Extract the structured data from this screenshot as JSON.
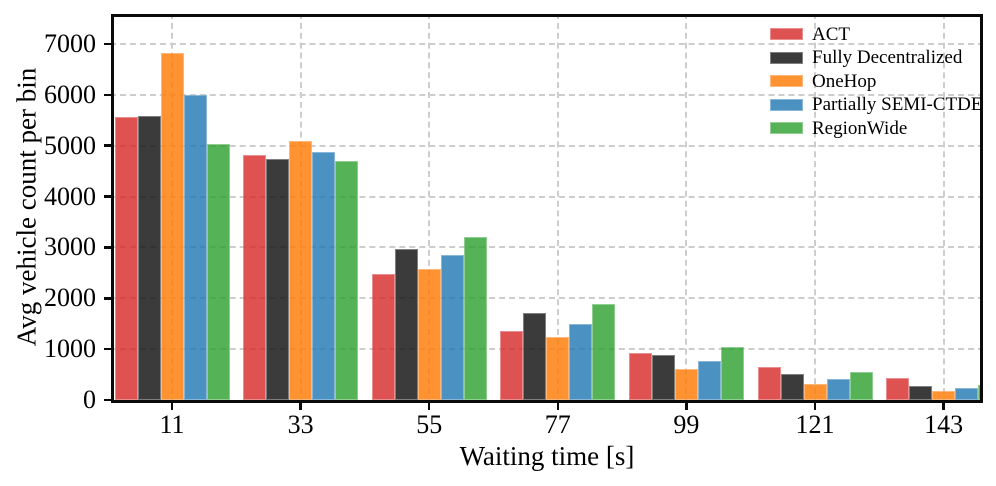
{
  "chart_data": {
    "type": "bar",
    "title": "",
    "xlabel": "Waiting time [s]",
    "ylabel": "Avg vehicle count per bin",
    "categories": [
      "11",
      "33",
      "55",
      "77",
      "99",
      "121",
      "143"
    ],
    "series": [
      {
        "name": "ACT",
        "color": "#d62728",
        "alpha": 0.8,
        "values": [
          5570,
          4810,
          2470,
          1360,
          920,
          640,
          440
        ]
      },
      {
        "name": "Fully Decentralized",
        "color": "#1a1a1a",
        "alpha": 0.85,
        "values": [
          5580,
          4740,
          2960,
          1710,
          890,
          510,
          280
        ]
      },
      {
        "name": "OneHop",
        "color": "#ff7f0e",
        "alpha": 0.85,
        "values": [
          6830,
          5090,
          2570,
          1230,
          600,
          310,
          170
        ]
      },
      {
        "name": "Partially SEMI-CTDE",
        "color": "#1f77b4",
        "alpha": 0.8,
        "values": [
          6000,
          4880,
          2850,
          1490,
          770,
          410,
          240
        ]
      },
      {
        "name": "RegionWide",
        "color": "#2ca02c",
        "alpha": 0.8,
        "values": [
          5030,
          4690,
          3200,
          1880,
          1050,
          560,
          300
        ]
      }
    ],
    "yticks": [
      0,
      1000,
      2000,
      3000,
      4000,
      5000,
      6000,
      7000
    ],
    "ylim": [
      0,
      7530
    ],
    "grid": "dashed gray, horizontal at each 1000 and vertical at each category",
    "legend_position": "upper-right, frameless",
    "note_colors": {
      "grid": "#cdcdcd",
      "axis": "#0a0a0a",
      "background": "#ffffff"
    }
  }
}
